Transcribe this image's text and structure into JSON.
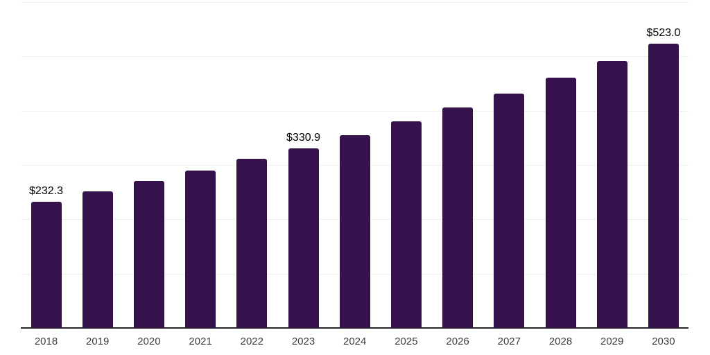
{
  "chart_data": {
    "type": "bar",
    "title": "",
    "xlabel": "",
    "ylabel": "",
    "categories": [
      "2018",
      "2019",
      "2020",
      "2021",
      "2022",
      "2023",
      "2024",
      "2025",
      "2026",
      "2027",
      "2028",
      "2029",
      "2030"
    ],
    "values": [
      232.3,
      251.0,
      270.4,
      290.3,
      311.4,
      330.9,
      355.3,
      380.0,
      406.5,
      432.0,
      461.1,
      491.5,
      523.0
    ],
    "labeled_points": [
      {
        "index": 0,
        "label": "$232.3"
      },
      {
        "index": 5,
        "label": "$330.9"
      },
      {
        "index": 12,
        "label": "$523.0"
      }
    ],
    "ylim": [
      0,
      600
    ],
    "gridline_values": [
      100,
      200,
      300,
      400,
      500,
      600
    ],
    "grid": "horizontal",
    "legend": "none",
    "colors": {
      "bar": "#35124B",
      "gridline": "#F0F0F0",
      "axis": "#262626",
      "tick_text": "#3D3D3D",
      "value_text": "#000000",
      "background": "#FFFFFF"
    }
  }
}
